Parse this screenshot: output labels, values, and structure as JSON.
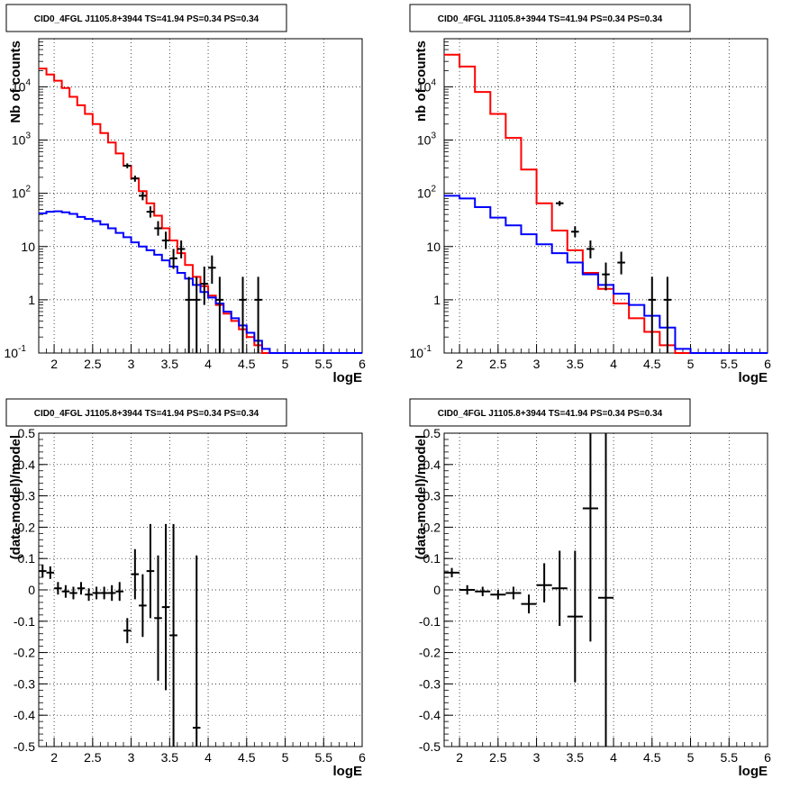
{
  "chart_data": [
    {
      "type": "step",
      "title": "CID0_4FGL J1105.8+3944 TS=41.94 PS=0.34 PS=0.34",
      "xlabel": "logE",
      "ylabel": "Nb of counts",
      "xlim": [
        1.8,
        6.0
      ],
      "ylim": [
        0.1,
        80000
      ],
      "yscale": "log",
      "grid": true,
      "xticks": [
        "2",
        "2.5",
        "3",
        "3.5",
        "4",
        "4.5",
        "5",
        "5.5",
        "6"
      ],
      "yticks": [
        "10^{-1}",
        "1",
        "10",
        "10^{2}",
        "10^{3}",
        "10^{4}"
      ],
      "bin_edges": [
        1.8,
        1.9,
        2.0,
        2.1,
        2.2,
        2.3,
        2.4,
        2.5,
        2.6,
        2.7,
        2.8,
        2.9,
        3.0,
        3.1,
        3.2,
        3.3,
        3.4,
        3.5,
        3.6,
        3.7,
        3.8,
        3.9,
        4.0,
        4.1,
        4.2,
        4.3,
        4.4,
        4.5,
        4.6,
        4.7,
        4.8,
        4.9,
        5.0,
        5.1,
        5.2,
        5.3,
        5.4,
        5.5,
        5.6,
        5.7,
        5.8,
        5.9,
        6.0
      ],
      "series": [
        {
          "color": "#ff0000",
          "values": [
            22000,
            17000,
            13000,
            9500,
            6500,
            4500,
            3100,
            2000,
            1350,
            900,
            560,
            330,
            190,
            110,
            65,
            38,
            22,
            13,
            7.5,
            4.5,
            2.7,
            1.8,
            1.2,
            0.8,
            0.55,
            0.4,
            0.28,
            0.2,
            0.14,
            0.1,
            0.1,
            0.1,
            0.1,
            0.1,
            0.1,
            0.1,
            0.1,
            0.1,
            0.1,
            0.1,
            0.1,
            0.1
          ]
        },
        {
          "color": "#0000ff",
          "values": [
            42,
            45,
            46,
            44,
            41,
            36,
            33,
            30,
            26,
            22,
            18,
            15,
            12,
            10,
            8.5,
            7,
            5.5,
            4.2,
            3.2,
            2.5,
            1.9,
            1.4,
            1.1,
            0.85,
            0.6,
            0.45,
            0.33,
            0.24,
            0.17,
            0.12,
            0.1,
            0.1,
            0.1,
            0.1,
            0.1,
            0.1,
            0.1,
            0.1,
            0.1,
            0.1,
            0.1,
            0.1
          ]
        }
      ],
      "points": [
        {
          "x": 2.95,
          "y": 330,
          "ylo": 295,
          "yhi": 365
        },
        {
          "x": 3.05,
          "y": 190,
          "ylo": 165,
          "yhi": 215
        },
        {
          "x": 3.15,
          "y": 90,
          "ylo": 74,
          "yhi": 106
        },
        {
          "x": 3.25,
          "y": 45,
          "ylo": 35,
          "yhi": 57
        },
        {
          "x": 3.35,
          "y": 22,
          "ylo": 16,
          "yhi": 30
        },
        {
          "x": 3.45,
          "y": 13,
          "ylo": 9,
          "yhi": 19
        },
        {
          "x": 3.55,
          "y": 6,
          "ylo": 3.8,
          "yhi": 9
        },
        {
          "x": 3.65,
          "y": 9,
          "ylo": 6,
          "yhi": 13
        },
        {
          "x": 3.75,
          "y": 1,
          "ylo": 0.1,
          "yhi": 2.7
        },
        {
          "x": 3.85,
          "y": 1,
          "ylo": 0.1,
          "yhi": 2.7
        },
        {
          "x": 3.95,
          "y": 2,
          "ylo": 0.8,
          "yhi": 4.2
        },
        {
          "x": 4.05,
          "y": 4,
          "ylo": 2,
          "yhi": 6.8
        },
        {
          "x": 4.15,
          "y": 1,
          "ylo": 0.1,
          "yhi": 2.7
        },
        {
          "x": 4.45,
          "y": 1,
          "ylo": 0.1,
          "yhi": 2.7
        },
        {
          "x": 4.65,
          "y": 1,
          "ylo": 0.1,
          "yhi": 2.7
        }
      ]
    },
    {
      "type": "step",
      "title": "CID0_4FGL J1105.8+3944 TS=41.94 PS=0.34 PS=0.34",
      "xlabel": "logE",
      "ylabel": "nb of counts",
      "xlim": [
        1.8,
        6.0
      ],
      "ylim": [
        0.1,
        80000
      ],
      "yscale": "log",
      "grid": true,
      "xticks": [
        "2",
        "2.5",
        "3",
        "3.5",
        "4",
        "4.5",
        "5",
        "5.5",
        "6"
      ],
      "yticks": [
        "10^{-1}",
        "1",
        "10",
        "10^{2}",
        "10^{3}",
        "10^{4}"
      ],
      "bin_edges": [
        1.8,
        2.0,
        2.2,
        2.4,
        2.6,
        2.8,
        3.0,
        3.2,
        3.4,
        3.6,
        3.8,
        4.0,
        4.2,
        4.4,
        4.6,
        4.8,
        5.0,
        5.2,
        5.4,
        5.6,
        5.8,
        6.0
      ],
      "series": [
        {
          "color": "#ff0000",
          "values": [
            40000,
            24000,
            8000,
            3100,
            1100,
            280,
            65,
            20,
            8.5,
            3.2,
            1.6,
            0.85,
            0.45,
            0.25,
            0.14,
            0.1,
            0.1,
            0.1,
            0.1,
            0.1,
            0.1
          ]
        },
        {
          "color": "#0000ff",
          "values": [
            90,
            80,
            55,
            35,
            25,
            17,
            11,
            7.5,
            5,
            3,
            1.9,
            1.3,
            0.8,
            0.5,
            0.3,
            0.12,
            0.1,
            0.1,
            0.1,
            0.1,
            0.1
          ]
        }
      ],
      "points": [
        {
          "x": 3.3,
          "y": 65,
          "ylo": 58,
          "yhi": 72
        },
        {
          "x": 3.5,
          "y": 19,
          "ylo": 15,
          "yhi": 24
        },
        {
          "x": 3.7,
          "y": 9,
          "ylo": 6,
          "yhi": 13
        },
        {
          "x": 3.9,
          "y": 3,
          "ylo": 1.5,
          "yhi": 5
        },
        {
          "x": 4.1,
          "y": 5,
          "ylo": 3,
          "yhi": 8
        },
        {
          "x": 4.5,
          "y": 1,
          "ylo": 0.1,
          "yhi": 2.7
        },
        {
          "x": 4.7,
          "y": 1,
          "ylo": 0.1,
          "yhi": 2.7
        }
      ]
    },
    {
      "type": "scatter",
      "title": "CID0_4FGL J1105.8+3944 TS=41.94 PS=0.34 PS=0.34",
      "xlabel": "logE",
      "ylabel": "(data-model)/model",
      "xlim": [
        1.8,
        6.0
      ],
      "ylim": [
        -0.5,
        0.5
      ],
      "grid": true,
      "xticks": [
        "2",
        "2.5",
        "3",
        "3.5",
        "4",
        "4.5",
        "5",
        "5.5",
        "6"
      ],
      "yticks": [
        "-0.5",
        "-0.4",
        "-0.3",
        "-0.2",
        "-0.1",
        "0",
        "0.1",
        "0.2",
        "0.3",
        "0.4",
        "0.5"
      ],
      "xerr": 0.05,
      "points": [
        {
          "x": 1.85,
          "y": 0.06,
          "ylo": 0.04,
          "yhi": 0.08
        },
        {
          "x": 1.95,
          "y": 0.055,
          "ylo": 0.035,
          "yhi": 0.075
        },
        {
          "x": 2.05,
          "y": 0.005,
          "ylo": -0.015,
          "yhi": 0.025
        },
        {
          "x": 2.15,
          "y": -0.005,
          "ylo": -0.025,
          "yhi": 0.015
        },
        {
          "x": 2.25,
          "y": -0.01,
          "ylo": -0.03,
          "yhi": 0.01
        },
        {
          "x": 2.35,
          "y": 0.005,
          "ylo": -0.015,
          "yhi": 0.025
        },
        {
          "x": 2.45,
          "y": -0.015,
          "ylo": -0.035,
          "yhi": 0.005
        },
        {
          "x": 2.55,
          "y": -0.01,
          "ylo": -0.03,
          "yhi": 0.01
        },
        {
          "x": 2.65,
          "y": -0.01,
          "ylo": -0.03,
          "yhi": 0.01
        },
        {
          "x": 2.75,
          "y": -0.01,
          "ylo": -0.035,
          "yhi": 0.015
        },
        {
          "x": 2.85,
          "y": -0.005,
          "ylo": -0.035,
          "yhi": 0.025
        },
        {
          "x": 2.95,
          "y": -0.13,
          "ylo": -0.17,
          "yhi": -0.09
        },
        {
          "x": 3.05,
          "y": 0.05,
          "ylo": -0.03,
          "yhi": 0.13
        },
        {
          "x": 3.15,
          "y": -0.05,
          "ylo": -0.15,
          "yhi": 0.05
        },
        {
          "x": 3.25,
          "y": 0.06,
          "ylo": -0.09,
          "yhi": 0.21
        },
        {
          "x": 3.35,
          "y": -0.09,
          "ylo": -0.29,
          "yhi": 0.11
        },
        {
          "x": 3.45,
          "y": -0.055,
          "ylo": -0.32,
          "yhi": 0.21
        },
        {
          "x": 3.55,
          "y": -0.145,
          "ylo": -0.5,
          "yhi": 0.21
        },
        {
          "x": 3.85,
          "y": -0.44,
          "ylo": -0.5,
          "yhi": 0.11
        }
      ]
    },
    {
      "type": "scatter",
      "title": "CID0_4FGL J1105.8+3944 TS=41.94 PS=0.34 PS=0.34",
      "xlabel": "logE",
      "ylabel": "(data-model)/model",
      "xlim": [
        1.8,
        6.0
      ],
      "ylim": [
        -0.5,
        0.5
      ],
      "grid": true,
      "xticks": [
        "2",
        "2.5",
        "3",
        "3.5",
        "4",
        "4.5",
        "5",
        "5.5",
        "6"
      ],
      "yticks": [
        "-0.5",
        "-0.4",
        "-0.3",
        "-0.2",
        "-0.1",
        "0",
        "0.1",
        "0.2",
        "0.3",
        "0.4",
        "0.5"
      ],
      "xerr": 0.1,
      "points": [
        {
          "x": 1.9,
          "y": 0.055,
          "ylo": 0.04,
          "yhi": 0.07
        },
        {
          "x": 2.1,
          "y": 0.0,
          "ylo": -0.015,
          "yhi": 0.015
        },
        {
          "x": 2.3,
          "y": -0.005,
          "ylo": -0.02,
          "yhi": 0.01
        },
        {
          "x": 2.5,
          "y": -0.015,
          "ylo": -0.03,
          "yhi": 0.0
        },
        {
          "x": 2.7,
          "y": -0.01,
          "ylo": -0.03,
          "yhi": 0.01
        },
        {
          "x": 2.9,
          "y": -0.045,
          "ylo": -0.075,
          "yhi": -0.015
        },
        {
          "x": 3.1,
          "y": 0.015,
          "ylo": -0.04,
          "yhi": 0.085
        },
        {
          "x": 3.3,
          "y": 0.005,
          "ylo": -0.115,
          "yhi": 0.125
        },
        {
          "x": 3.5,
          "y": -0.085,
          "ylo": -0.295,
          "yhi": 0.125
        },
        {
          "x": 3.7,
          "y": 0.26,
          "ylo": -0.165,
          "yhi": 0.5
        },
        {
          "x": 3.9,
          "y": -0.025,
          "ylo": -0.5,
          "yhi": 0.5
        }
      ]
    }
  ]
}
